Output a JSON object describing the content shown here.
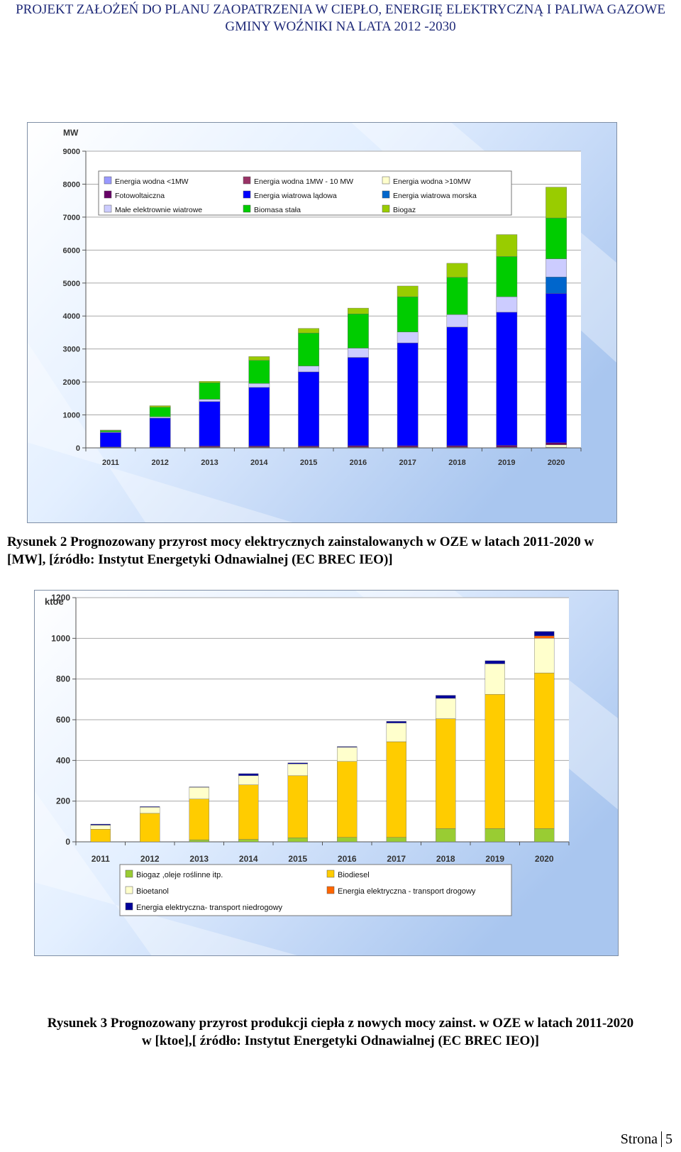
{
  "header": {
    "line1": "PROJEKT ZAŁOŻEŃ DO PLANU ZAOPATRZENIA W CIEPŁO, ENERGIĘ ELEKTRYCZNĄ I PALIWA GAZOWE",
    "line2": "GMINY WOŹNIKI NA LATA 2012 -2030"
  },
  "captions": {
    "figure2": "Rysunek 2 Prognozowany przyrost mocy elektrycznych zainstalowanych w OZE w latach 2011-2020 w [MW], [źródło: Instytut Energetyki Odnawialnej (EC BREC IEO)]",
    "figure3_line1": "Rysunek 3 Prognozowany przyrost produkcji ciepła z nowych mocy zainst. w OZE w latach 2011-2020",
    "figure3_line2": "w [ktoe],[ źródło: Instytut Energetyki Odnawialnej (EC BREC IEO)]"
  },
  "footer": {
    "label": "Strona",
    "page": "5"
  },
  "chart_data": [
    {
      "type": "bar",
      "stacked": true,
      "ylabel": "MW",
      "ylim": [
        0,
        9000
      ],
      "yticks": [
        0,
        1000,
        2000,
        3000,
        4000,
        5000,
        6000,
        7000,
        8000,
        9000
      ],
      "grid": true,
      "legend_position": "top-left",
      "categories": [
        "2011",
        "2012",
        "2013",
        "2014",
        "2015",
        "2016",
        "2017",
        "2018",
        "2019",
        "2020"
      ],
      "series": [
        {
          "name": "Energia wodna <1MW",
          "color": "#9999ff",
          "values": [
            5,
            5,
            5,
            5,
            5,
            5,
            5,
            5,
            5,
            5
          ]
        },
        {
          "name": "Energia wodna 1MW - 10 MW",
          "color": "#993366",
          "values": [
            10,
            10,
            10,
            10,
            10,
            10,
            10,
            10,
            10,
            10
          ]
        },
        {
          "name": "Energia wodna >10MW",
          "color": "#ffffcc",
          "values": [
            10,
            10,
            10,
            10,
            10,
            10,
            10,
            10,
            10,
            80
          ]
        },
        {
          "name": "Fotowoltaiczna",
          "color": "#660066",
          "values": [
            0,
            0,
            30,
            30,
            30,
            40,
            40,
            40,
            50,
            60
          ]
        },
        {
          "name": "Energia wiatrowa lądowa",
          "color": "#0000ff",
          "values": [
            440,
            880,
            1350,
            1780,
            2250,
            2680,
            3120,
            3600,
            4040,
            4530
          ]
        },
        {
          "name": "Energia wiatrowa morska",
          "color": "#0066cc",
          "values": [
            0,
            0,
            0,
            0,
            0,
            0,
            0,
            0,
            0,
            500
          ]
        },
        {
          "name": "Małe elektrownie wiatrowe",
          "color": "#ccccff",
          "values": [
            20,
            40,
            70,
            120,
            180,
            280,
            330,
            380,
            470,
            550
          ]
        },
        {
          "name": "Biomasa stała",
          "color": "#00cc00",
          "values": [
            40,
            290,
            500,
            700,
            1000,
            1040,
            1070,
            1130,
            1220,
            1240
          ]
        },
        {
          "name": "Biogaz",
          "color": "#99cc00",
          "values": [
            15,
            45,
            45,
            115,
            140,
            175,
            325,
            425,
            665,
            935
          ]
        }
      ]
    },
    {
      "type": "bar",
      "stacked": true,
      "ylabel": "ktoe",
      "ylim": [
        0,
        1200
      ],
      "yticks": [
        0,
        200,
        400,
        600,
        800,
        1000,
        1200
      ],
      "grid": true,
      "legend_position": "bottom",
      "categories": [
        "2011",
        "2012",
        "2013",
        "2014",
        "2015",
        "2016",
        "2017",
        "2018",
        "2019",
        "2020"
      ],
      "series": [
        {
          "name": "Biogaz ,oleje roślinne itp.",
          "color": "#99cc33",
          "values": [
            0,
            0,
            10,
            12,
            20,
            22,
            22,
            65,
            65,
            65
          ]
        },
        {
          "name": "Biodiesel",
          "color": "#ffcc00",
          "values": [
            62,
            140,
            200,
            268,
            305,
            373,
            470,
            540,
            660,
            765
          ]
        },
        {
          "name": "Bioetanol",
          "color": "#ffffcc",
          "values": [
            20,
            30,
            58,
            45,
            58,
            70,
            92,
            100,
            150,
            170
          ]
        },
        {
          "name": "Energia elektryczna - transport drogowy",
          "color": "#ff6600",
          "values": [
            0,
            0,
            0,
            0,
            0,
            0,
            0,
            0,
            0,
            12
          ]
        },
        {
          "name": "Energia elektryczna- transport niedrogowy",
          "color": "#000099",
          "values": [
            5,
            3,
            2,
            10,
            5,
            3,
            8,
            15,
            15,
            22
          ]
        }
      ]
    }
  ]
}
